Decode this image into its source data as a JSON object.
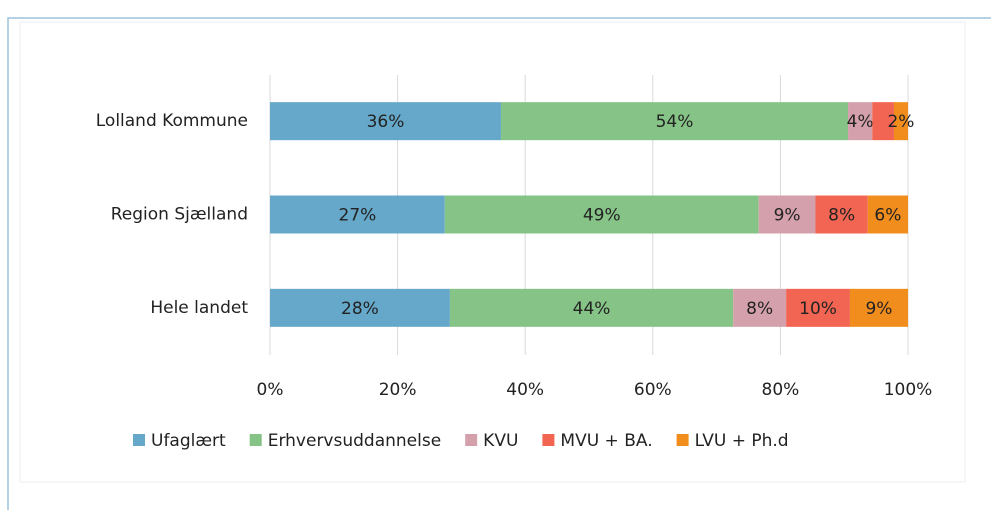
{
  "chart_data": {
    "type": "stacked_barh",
    "categories": [
      "Lolland Kommune",
      "Region Sjælland",
      "Hele landet"
    ],
    "series": [
      {
        "name": "Ufaglært",
        "color": "#65a8c9",
        "values": [
          36.2,
          27.4,
          28.2
        ],
        "value_labels": [
          "36%",
          "27%",
          "28%"
        ]
      },
      {
        "name": "Erhvervsuddannelse",
        "color": "#86c387",
        "values": [
          54.4,
          49.2,
          44.4
        ],
        "value_labels": [
          "54%",
          "49%",
          "44%"
        ]
      },
      {
        "name": "KVU",
        "color": "#d4a0ac",
        "values": [
          3.8,
          8.9,
          8.3
        ],
        "value_labels": [
          "4%",
          "9%",
          "8%"
        ]
      },
      {
        "name": "MVU + BA.",
        "color": "#f26552",
        "values": [
          3.4,
          8.2,
          10.0
        ],
        "value_labels": [
          null,
          "8%",
          "10%"
        ]
      },
      {
        "name": "LVU + Ph.d",
        "color": "#f18d1d",
        "values": [
          2.2,
          6.3,
          9.1
        ],
        "value_labels": [
          "2%",
          "6%",
          "9%"
        ]
      }
    ],
    "xlim": [
      0,
      100
    ],
    "xticks": [
      {
        "value": 0,
        "label": "0%"
      },
      {
        "value": 20,
        "label": "20%"
      },
      {
        "value": 40,
        "label": "40%"
      },
      {
        "value": 60,
        "label": "60%"
      },
      {
        "value": 80,
        "label": "80%"
      },
      {
        "value": 100,
        "label": "100%"
      }
    ],
    "grid": true,
    "legend": "bottom"
  }
}
